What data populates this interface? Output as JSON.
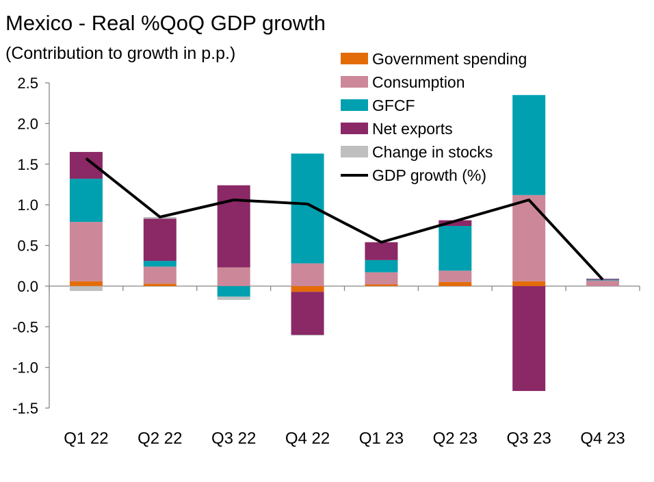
{
  "chart_data": {
    "type": "bar",
    "stacked": true,
    "title": "Mexico - Real %QoQ GDP growth",
    "subtitle": "(Contribution to growth in p.p.)",
    "categories": [
      "Q1 22",
      "Q2 22",
      "Q3 22",
      "Q4 22",
      "Q1 23",
      "Q2 23",
      "Q3 23",
      "Q4 23"
    ],
    "ylim": [
      -1.5,
      2.5
    ],
    "yticks": [
      "2.5",
      "2.0",
      "1.5",
      "1.0",
      "0.5",
      "0.0",
      "-0.5",
      "-1.0",
      "-1.5"
    ],
    "grid": false,
    "legend_position": "top-right",
    "series": [
      {
        "name": "Government spending",
        "color": "#E36C09",
        "values": [
          0.06,
          0.03,
          0.0,
          -0.07,
          0.02,
          0.05,
          0.06,
          0.0
        ]
      },
      {
        "name": "Consumption",
        "color": "#CC8899",
        "values": [
          0.73,
          0.21,
          0.23,
          0.28,
          0.15,
          0.14,
          1.06,
          0.07
        ]
      },
      {
        "name": "GFCF",
        "color": "#00A0B0",
        "values": [
          0.53,
          0.07,
          -0.13,
          1.35,
          0.15,
          0.55,
          1.23,
          0.01
        ]
      },
      {
        "name": "Net exports",
        "color": "#8B2866",
        "values": [
          0.33,
          0.52,
          1.01,
          -0.53,
          0.22,
          0.07,
          -1.29,
          0.01
        ]
      },
      {
        "name": "Change in stocks",
        "color": "#BFBFBF",
        "values": [
          -0.06,
          0.02,
          -0.04,
          -0.01,
          0.0,
          0.0,
          0.0,
          0.0
        ]
      }
    ],
    "line": {
      "name": "GDP growth (%)",
      "color": "#000000",
      "values": [
        1.57,
        0.85,
        1.06,
        1.01,
        0.54,
        0.8,
        1.06,
        0.08
      ]
    }
  }
}
